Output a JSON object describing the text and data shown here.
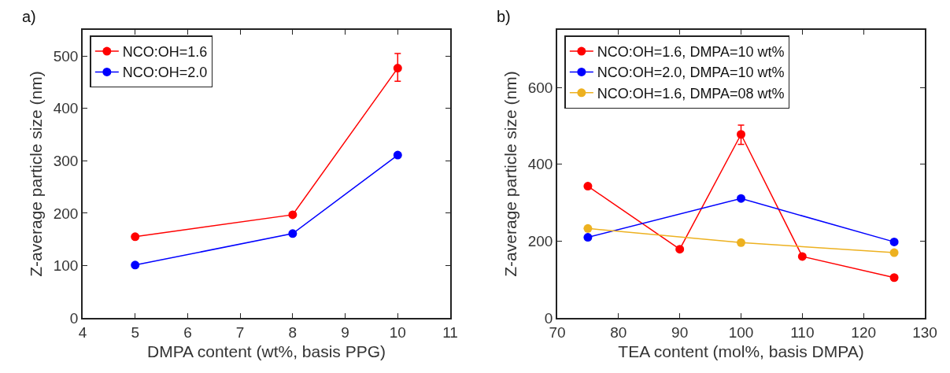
{
  "chart_data": [
    {
      "type": "line",
      "annotations": [
        "a)"
      ],
      "xlabel": "DMPA content (wt%, basis PPG)",
      "ylabel": "Z-average particle size (nm)",
      "x": [
        5,
        8,
        10
      ],
      "series": [
        {
          "name": "NCO:OH=1.6",
          "color": "#ff0000",
          "values": [
            155,
            197,
            477
          ],
          "errors": [
            null,
            null,
            [
              452,
              505
            ]
          ]
        },
        {
          "name": "NCO:OH=2.0",
          "color": "#0000ff",
          "values": [
            101,
            161,
            311
          ]
        }
      ],
      "xlim": [
        4,
        11
      ],
      "xticks": [
        4,
        5,
        6,
        7,
        8,
        9,
        10,
        11
      ],
      "ylim": [
        0,
        550
      ],
      "yticks": [
        0,
        100,
        200,
        300,
        400,
        500
      ],
      "grid": false,
      "legend": "top left",
      "marker": "circle",
      "line_style": "solid"
    },
    {
      "type": "line",
      "annotations": [
        "b)"
      ],
      "xlabel": "TEA content (mol%, basis DMPA)",
      "ylabel": "Z-average particle size (nm)",
      "series": [
        {
          "name": "NCO:OH=1.6, DMPA=10 wt%",
          "color": "#ff0000",
          "x": [
            75,
            90,
            100,
            110,
            125
          ],
          "values": [
            343,
            179,
            478,
            160,
            105
          ],
          "errors": [
            null,
            null,
            [
              452,
              502
            ],
            null,
            null
          ]
        },
        {
          "name": "NCO:OH=2.0, DMPA=10 wt%",
          "color": "#0000ff",
          "x": [
            75,
            100,
            125
          ],
          "values": [
            210,
            311,
            198
          ]
        },
        {
          "name": "NCO:OH=1.6, DMPA=08 wt%",
          "color": "#edb120",
          "x": [
            75,
            100,
            125
          ],
          "values": [
            233,
            196,
            170
          ]
        }
      ],
      "xlim": [
        70,
        130
      ],
      "xticks": [
        70,
        80,
        90,
        100,
        110,
        120,
        130
      ],
      "ylim": [
        0,
        750
      ],
      "yticks": [
        0,
        200,
        400,
        600
      ],
      "grid": false,
      "legend": "top left",
      "marker": "circle",
      "line_style": "solid"
    }
  ]
}
